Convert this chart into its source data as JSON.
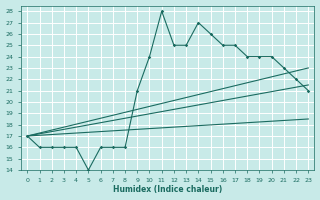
{
  "xlabel": "Humidex (Indice chaleur)",
  "bg_color": "#c8eae8",
  "grid_color": "#ffffff",
  "line_color": "#1a6b60",
  "xlim": [
    -0.5,
    23.5
  ],
  "ylim": [
    14,
    28.5
  ],
  "yticks": [
    14,
    15,
    16,
    17,
    18,
    19,
    20,
    21,
    22,
    23,
    24,
    25,
    26,
    27,
    28
  ],
  "xticks": [
    0,
    1,
    2,
    3,
    4,
    5,
    6,
    7,
    8,
    9,
    10,
    11,
    12,
    13,
    14,
    15,
    16,
    17,
    18,
    19,
    20,
    21,
    22,
    23
  ],
  "line_max": {
    "x": [
      0,
      1,
      2,
      3,
      4,
      5,
      6,
      7,
      8,
      9,
      10,
      11,
      12,
      13,
      14,
      15,
      16,
      17,
      18,
      19,
      20,
      21,
      22,
      23
    ],
    "y": [
      17,
      16,
      16,
      16,
      16,
      14,
      16,
      16,
      16,
      21,
      24,
      28,
      25,
      25,
      27,
      26,
      25,
      25,
      24,
      24,
      24,
      23,
      22,
      21
    ]
  },
  "line_mean_upper": {
    "x": [
      0,
      23
    ],
    "y": [
      17,
      23
    ]
  },
  "line_mean_lower": {
    "x": [
      0,
      23
    ],
    "y": [
      17,
      21.5
    ]
  },
  "line_min": {
    "x": [
      0,
      23
    ],
    "y": [
      17,
      18.5
    ]
  }
}
